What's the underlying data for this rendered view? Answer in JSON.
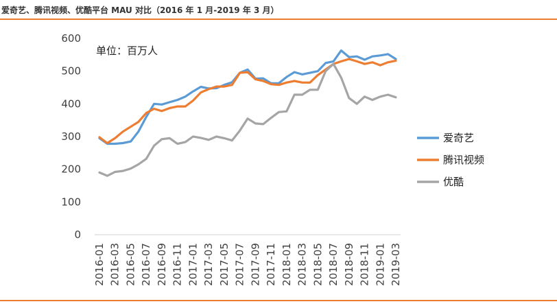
{
  "header": {
    "title": "爱奇艺、腾讯视频、优酷平台 MAU 对比（2016 年 1 月-2019 年 3 月）"
  },
  "colors": {
    "accent_rule": "#ee7b32"
  },
  "chart_data": {
    "type": "line",
    "unit_label": "单位：百万人",
    "ylim": [
      0,
      600
    ],
    "yticks": [
      0,
      100,
      200,
      300,
      400,
      500,
      600
    ],
    "grid": false,
    "legend_position": "right",
    "x": [
      "2016-01",
      "2016-02",
      "2016-03",
      "2016-04",
      "2016-05",
      "2016-06",
      "2016-07",
      "2016-08",
      "2016-09",
      "2016-10",
      "2016-11",
      "2016-12",
      "2017-01",
      "2017-02",
      "2017-03",
      "2017-04",
      "2017-05",
      "2017-06",
      "2017-07",
      "2017-08",
      "2017-09",
      "2017-10",
      "2017-11",
      "2017-12",
      "2018-01",
      "2018-02",
      "2018-03",
      "2018-04",
      "2018-05",
      "2018-06",
      "2018-07",
      "2018-08",
      "2018-09",
      "2018-10",
      "2018-11",
      "2018-12",
      "2019-01",
      "2019-02",
      "2019-03"
    ],
    "xtick_labels": [
      "2016-01",
      "2016-03",
      "2016-05",
      "2016-07",
      "2016-09",
      "2016-11",
      "2017-01",
      "2017-03",
      "2017-05",
      "2017-07",
      "2017-09",
      "2017-11",
      "2018-01",
      "2018-03",
      "2018-05",
      "2018-07",
      "2018-09",
      "2018-11",
      "2019-01",
      "2019-03"
    ],
    "series": [
      {
        "name": "爱奇艺",
        "color": "#5b9bd5",
        "values": [
          295,
          278,
          278,
          280,
          285,
          315,
          360,
          400,
          398,
          405,
          412,
          422,
          438,
          452,
          447,
          448,
          458,
          466,
          495,
          505,
          477,
          478,
          463,
          463,
          482,
          497,
          490,
          495,
          500,
          525,
          530,
          563,
          543,
          545,
          535,
          545,
          548,
          552,
          537
        ]
      },
      {
        "name": "腾讯视频",
        "color": "#ed7d31",
        "values": [
          298,
          280,
          295,
          315,
          330,
          345,
          372,
          385,
          378,
          387,
          392,
          392,
          410,
          435,
          445,
          453,
          453,
          458,
          495,
          497,
          475,
          470,
          460,
          458,
          465,
          470,
          465,
          465,
          488,
          505,
          522,
          530,
          537,
          530,
          522,
          527,
          518,
          527,
          532
        ]
      },
      {
        "name": "优酷",
        "color": "#a5a5a5",
        "values": [
          190,
          180,
          192,
          195,
          202,
          215,
          232,
          272,
          292,
          295,
          278,
          283,
          300,
          296,
          290,
          300,
          295,
          288,
          318,
          355,
          340,
          338,
          357,
          375,
          377,
          428,
          428,
          443,
          443,
          500,
          522,
          480,
          418,
          400,
          422,
          412,
          422,
          428,
          420
        ]
      }
    ]
  }
}
